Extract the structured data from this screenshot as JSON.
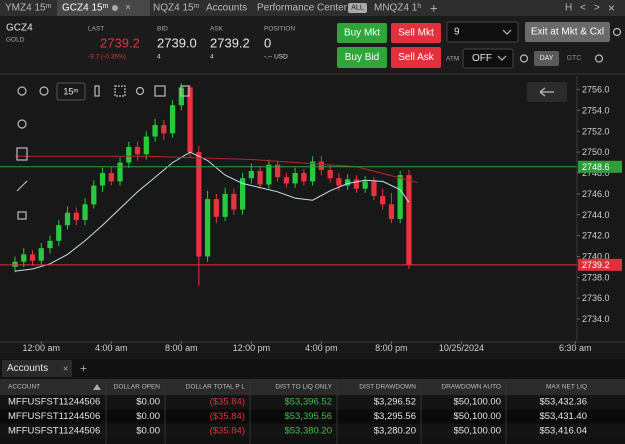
{
  "tabs": [
    "YMZ4 15ᵐ",
    "GCZ4 15ᵐ",
    "NQZ4 15ᵐ",
    "Accounts",
    "Performance Center",
    "ALL",
    "MNQZ4 1ʰ",
    "+"
  ],
  "window_controls": [
    "H",
    "<",
    ">",
    "×"
  ],
  "quote": {
    "symbol": "GCZ4",
    "name": "GOLD",
    "last_label": "LAST",
    "last": "2739.2",
    "change": "-9.7 (-0.35%)",
    "bid_label": "BID",
    "bid": "2739.0",
    "bid_size": "4",
    "ask_label": "ASK",
    "ask": "2739.2",
    "ask_size": "4",
    "position_label": "POSITION",
    "position": "0",
    "position_pl": "-.-- USD"
  },
  "order_panel": {
    "buy_mkt": "Buy Mkt",
    "sell_mkt": "Sell Mkt",
    "buy_bid": "Buy Bid",
    "sell_ask": "Sell Ask",
    "quantity": "9",
    "exit": "Exit at Mkt & Cxl",
    "atm_label": "ATM",
    "atm": "OFF",
    "day": "DAY",
    "gtc": "GTC"
  },
  "chart": {
    "interval": "15ᵐ",
    "ylim": [
      2731.9,
      2757.3
    ],
    "yticks": [
      {
        "value": 2734,
        "label": "2734.0"
      },
      {
        "value": 2736,
        "label": "2736.0"
      },
      {
        "value": 2738,
        "label": "2738.0"
      },
      {
        "value": 2740,
        "label": "2740.0"
      },
      {
        "value": 2742,
        "label": "2742.0"
      },
      {
        "value": 2744,
        "label": "2744.0"
      },
      {
        "value": 2746,
        "label": "2746.0"
      },
      {
        "value": 2748,
        "label": "2748.0"
      },
      {
        "value": 2750,
        "label": "2750.0"
      },
      {
        "value": 2752,
        "label": "2752.0"
      },
      {
        "value": 2754,
        "label": "2754.0"
      },
      {
        "value": 2756,
        "label": "2756.0"
      }
    ],
    "xlim": [
      -1.9,
      30.6
    ],
    "xticks": [
      {
        "value": 0,
        "label": "12:00 am"
      },
      {
        "value": 4,
        "label": "4:00 am"
      },
      {
        "value": 8,
        "label": "8:00 am"
      },
      {
        "value": 12,
        "label": "12:00 pm"
      },
      {
        "value": 16,
        "label": "4:00 pm"
      },
      {
        "value": 20,
        "label": "8:00 pm"
      },
      {
        "value": 24,
        "label": "10/25/2024"
      },
      {
        "value": 30.5,
        "label": "6:30 am"
      }
    ],
    "up_color": "#27c93f",
    "down_color": "#e8323f",
    "candles": {
      "x": [
        -1.5,
        -1,
        -0.5,
        0,
        0.5,
        1,
        1.5,
        2,
        2.5,
        3,
        3.5,
        4,
        4.5,
        5,
        5.5,
        6,
        6.5,
        7,
        7.5,
        8,
        8.5,
        9,
        9.5,
        10,
        10.5,
        11,
        11.5,
        12,
        12.5,
        13,
        13.5,
        14,
        14.5,
        15,
        15.5,
        16,
        16.5,
        17,
        17.5,
        18,
        18.5,
        19,
        19.5,
        20,
        20.5,
        21
      ],
      "open": [
        2739.0,
        2739.5,
        2740.2,
        2739.6,
        2740.8,
        2741.5,
        2743.0,
        2744.2,
        2743.5,
        2745.0,
        2746.8,
        2748.0,
        2747.2,
        2749.0,
        2750.5,
        2749.8,
        2751.5,
        2752.6,
        2751.8,
        2754.5,
        2756.2,
        2750.0,
        2740.0,
        2745.5,
        2743.8,
        2746.0,
        2744.5,
        2747.5,
        2748.2,
        2746.9,
        2748.8,
        2747.6,
        2747.0,
        2748.0,
        2747.2,
        2749.1,
        2748.3,
        2747.5,
        2746.8,
        2747.4,
        2746.5,
        2747.2,
        2745.8,
        2745.0,
        2743.6,
        2747.8
      ],
      "high": [
        2740.0,
        2740.8,
        2740.6,
        2741.3,
        2742.0,
        2743.5,
        2744.8,
        2744.7,
        2745.6,
        2747.3,
        2748.5,
        2748.6,
        2749.5,
        2751.0,
        2751.0,
        2752.0,
        2753.2,
        2753.1,
        2755.0,
        2756.6,
        2756.4,
        2750.6,
        2746.3,
        2746.0,
        2746.6,
        2746.5,
        2748.0,
        2748.9,
        2748.7,
        2749.3,
        2749.2,
        2748.0,
        2748.5,
        2748.4,
        2749.6,
        2749.6,
        2748.8,
        2748.0,
        2747.9,
        2747.8,
        2747.7,
        2747.6,
        2746.5,
        2746.1,
        2748.2,
        2748.3
      ],
      "low": [
        2738.5,
        2739.0,
        2739.1,
        2739.2,
        2740.3,
        2741.0,
        2742.6,
        2743.0,
        2743.0,
        2744.6,
        2746.2,
        2746.8,
        2746.8,
        2748.5,
        2749.2,
        2749.3,
        2751.0,
        2751.2,
        2751.4,
        2754.0,
        2749.5,
        2737.2,
        2739.5,
        2743.2,
        2743.4,
        2744.0,
        2744.0,
        2747.0,
        2746.5,
        2746.5,
        2747.2,
        2746.6,
        2746.6,
        2746.8,
        2746.8,
        2747.8,
        2747.1,
        2746.3,
        2746.4,
        2746.1,
        2746.1,
        2745.4,
        2744.5,
        2743.2,
        2743.2,
        2738.8
      ],
      "close": [
        2739.5,
        2740.2,
        2739.6,
        2740.8,
        2741.5,
        2743.0,
        2744.2,
        2743.5,
        2745.0,
        2746.8,
        2748.0,
        2747.2,
        2749.0,
        2750.5,
        2749.8,
        2751.5,
        2752.6,
        2751.8,
        2754.5,
        2756.2,
        2750.0,
        2740.0,
        2745.5,
        2743.8,
        2746.0,
        2744.5,
        2747.5,
        2748.2,
        2746.9,
        2748.8,
        2747.6,
        2747.0,
        2748.0,
        2747.2,
        2749.1,
        2748.3,
        2747.5,
        2746.8,
        2747.4,
        2746.5,
        2747.2,
        2745.8,
        2745.0,
        2743.6,
        2747.8,
        2739.2
      ]
    },
    "lines": [
      {
        "color": "#bfe3f2",
        "x": [
          -1.5,
          -0.5,
          0.5,
          1.5,
          2.5,
          3.5,
          4.5,
          5.5,
          6.5,
          7.5,
          8.5,
          9.5,
          10.5,
          11.5,
          12.5,
          13.5,
          14.5,
          15.5,
          16.5,
          17.5,
          18.5,
          19.5,
          20.5,
          21
        ],
        "values": [
          2738.6,
          2738.8,
          2739.3,
          2740.2,
          2741.5,
          2743.0,
          2744.6,
          2746.2,
          2747.6,
          2749.0,
          2750.0,
          2749.2,
          2747.8,
          2747.0,
          2746.6,
          2746.2,
          2745.6,
          2745.4,
          2746.3,
          2747.0,
          2747.3,
          2747.2,
          2746.4,
          2745.2
        ]
      },
      {
        "color": "#b3262e",
        "x": [
          -1.5,
          6,
          12,
          18,
          21.5
        ],
        "values": [
          2749.6,
          2749.6,
          2749.3,
          2748.6,
          2747.1
        ]
      }
    ],
    "price_tags": [
      {
        "value": 2748.6,
        "color": "#2f9e3a"
      },
      {
        "value": 2739.2,
        "color": "#e0303a"
      }
    ]
  },
  "accounts": {
    "tab": "Accounts",
    "add": "+",
    "columns": [
      "ACCOUNT",
      "DOLLAR OPEN",
      "DOLLAR TOTAL P L",
      "DIST TO LIQ ONLY",
      "DIST DRAWDOWN",
      "DRAWDOWN AUTO",
      "MAX NET LIQ"
    ],
    "rows": [
      [
        "MFFUSFST11244506",
        "$0.00",
        "($35.84)",
        "$53,396.52",
        "$3,296.52",
        "$50,100.00",
        "$53,432.36"
      ],
      [
        "MFFUSFST11244506",
        "$0.00",
        "($35.84)",
        "$53,395.56",
        "$3,295.56",
        "$50,100.00",
        "$53,431.40"
      ],
      [
        "MFFUSFST11244506",
        "$0.00",
        "($35.84)",
        "$53,380.20",
        "$3,280.20",
        "$50,100.00",
        "$53,416.04"
      ]
    ]
  }
}
